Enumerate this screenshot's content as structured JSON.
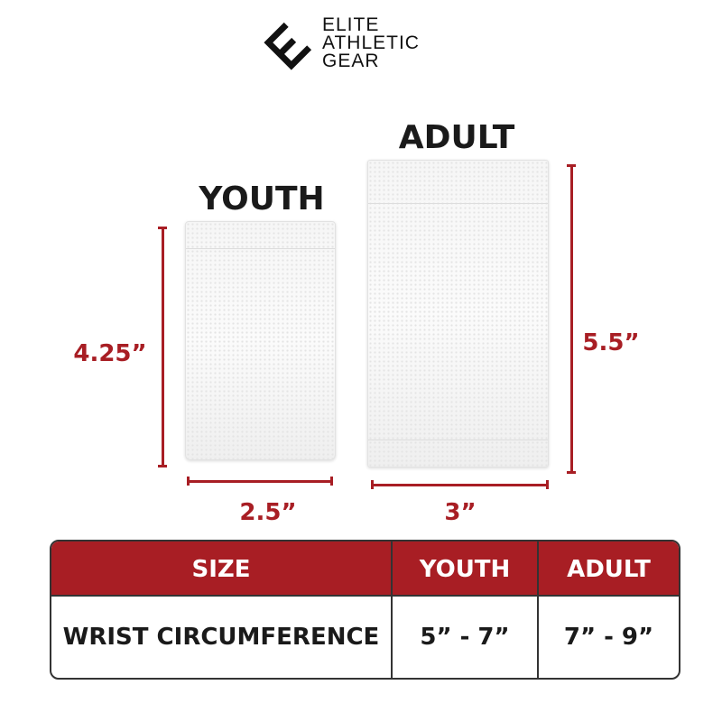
{
  "brand": {
    "logo_text": [
      "ELITE",
      "ATHLETIC",
      "GEAR"
    ],
    "logo_icon": "e-monogram-icon"
  },
  "colors": {
    "accent": "#a81e24",
    "text": "#1a1a1a"
  },
  "products": {
    "youth": {
      "title": "YOUTH",
      "height": "4.25”",
      "width": "2.5”"
    },
    "adult": {
      "title": "ADULT",
      "height": "5.5”",
      "width": "3”"
    }
  },
  "size_table": {
    "headers": [
      "SIZE",
      "YOUTH",
      "ADULT"
    ],
    "rows": [
      {
        "label": "WRIST CIRCUMFERENCE",
        "youth": "5” - 7”",
        "adult": "7” - 9”"
      }
    ]
  }
}
